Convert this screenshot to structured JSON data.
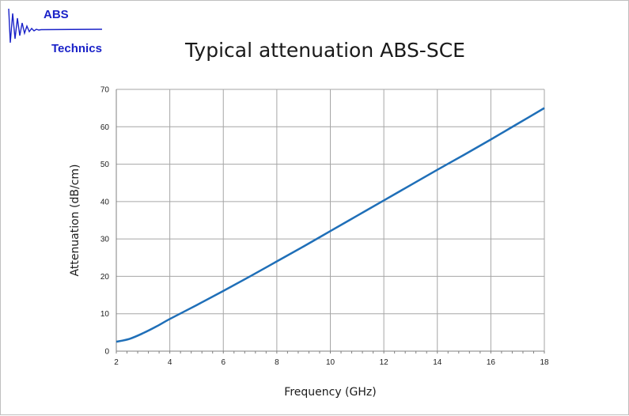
{
  "logo": {
    "line1": "ABS",
    "line2": "Technics",
    "color": "#1a22c8"
  },
  "chart_data": {
    "type": "line",
    "title": "Typical attenuation ABS-SCE",
    "xlabel": "Frequency (GHz)",
    "ylabel": "Attenuation (dB/cm)",
    "xlim": [
      2,
      18
    ],
    "ylim": [
      0,
      70
    ],
    "xticks": [
      2,
      4,
      6,
      8,
      10,
      12,
      14,
      16,
      18
    ],
    "yticks": [
      0,
      10,
      20,
      30,
      40,
      50,
      60,
      70
    ],
    "grid": true,
    "line_color": "#1f6fb8",
    "series": [
      {
        "x": [
          2,
          2.5,
          3,
          3.5,
          4,
          5,
          6,
          7,
          8,
          9,
          10,
          11,
          12,
          13,
          14,
          15,
          16,
          17,
          18
        ],
        "values": [
          2.5,
          3.3,
          4.8,
          6.6,
          8.6,
          12.3,
          16.1,
          20.0,
          24.0,
          28.0,
          32.1,
          36.2,
          40.3,
          44.4,
          48.5,
          52.5,
          56.6,
          60.8,
          65.0
        ]
      }
    ]
  }
}
